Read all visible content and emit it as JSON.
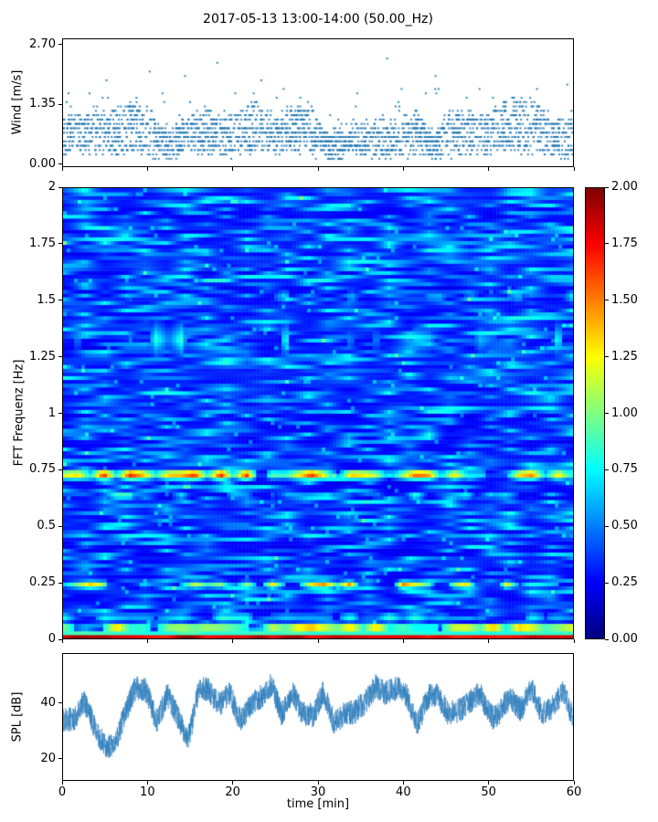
{
  "figure": {
    "title": "2017-05-13 13:00-14:00 (50.00_Hz)",
    "background": "#ffffff"
  },
  "chart_data": [
    {
      "id": "wind-speed-scatter",
      "type": "scatter",
      "ylabel": "Wind [m/s]",
      "xlim": [
        0,
        60
      ],
      "ylim": [
        -0.07,
        2.84
      ],
      "yticks": [
        {
          "v": 0.0,
          "label": "0.00"
        },
        {
          "v": 1.35,
          "label": "1.35"
        },
        {
          "v": 2.7,
          "label": "2.70"
        }
      ],
      "marker_color": "#1f77b4",
      "marker_size": 2,
      "n_points": 2600,
      "quantize_step": 0.1,
      "max_value": 2.7,
      "mean_base": 0.35,
      "mean_var": 0.7,
      "gust_prob": 0.06,
      "gust_amp": 1.7,
      "seed": 11,
      "description": "One hour of quantized anemometer samples; dense cloud between 0 and 1.35 m/s with intermittent gusts up to 2.70 m/s"
    },
    {
      "id": "fft-spectrogram",
      "type": "heatmap",
      "ylabel": "FFT Frequenz [Hz]",
      "xlim": [
        0,
        60
      ],
      "ylim": [
        0,
        2
      ],
      "clim": [
        0,
        2
      ],
      "colormap": "jet",
      "yticks": [
        {
          "v": 0,
          "label": "0"
        },
        {
          "v": 0.25,
          "label": "0.25"
        },
        {
          "v": 0.5,
          "label": "0.5"
        },
        {
          "v": 0.75,
          "label": "0.75"
        },
        {
          "v": 1,
          "label": "1"
        },
        {
          "v": 1.25,
          "label": "1.25"
        },
        {
          "v": 1.5,
          "label": "1.5"
        },
        {
          "v": 1.75,
          "label": "1.75"
        },
        {
          "v": 2,
          "label": "2"
        }
      ],
      "grid": {
        "nx": 140,
        "ny": 120
      },
      "base_min": 0.2,
      "base_jitter": 0.1,
      "speckle_prob": 0.012,
      "speckle_add": 0.25,
      "seed": 7,
      "bands": [
        {
          "f": 0.008,
          "width": 0.022,
          "min": 1.7,
          "max": 2.0,
          "coverage": 1.0
        },
        {
          "f": 0.05,
          "width": 0.022,
          "min": 1.0,
          "max": 2.0,
          "coverage": 0.85
        },
        {
          "f": 0.095,
          "width": 0.03,
          "min": 0.55,
          "max": 0.95,
          "coverage": 0.6
        },
        {
          "f": 0.24,
          "width": 0.022,
          "min": 0.6,
          "max": 1.7,
          "coverage": 0.5
        },
        {
          "f": 0.635,
          "width": 0.015,
          "min": 0.5,
          "max": 1.3,
          "coverage": 0.45
        },
        {
          "f": 0.73,
          "width": 0.028,
          "min": 0.7,
          "max": 2.0,
          "coverage": 0.8
        },
        {
          "f": 1.33,
          "width": 0.1,
          "min": 0.45,
          "max": 0.95,
          "coverage": 0.35
        },
        {
          "f": 1.52,
          "width": 0.04,
          "min": 0.4,
          "max": 0.8,
          "coverage": 0.3
        }
      ],
      "colorbar": {
        "ticks": [
          {
            "v": 0.0,
            "label": "0.00"
          },
          {
            "v": 0.25,
            "label": "0.25"
          },
          {
            "v": 0.5,
            "label": "0.50"
          },
          {
            "v": 0.75,
            "label": "0.75"
          },
          {
            "v": 1.0,
            "label": "1.00"
          },
          {
            "v": 1.25,
            "label": "1.25"
          },
          {
            "v": 1.5,
            "label": "1.50"
          },
          {
            "v": 1.75,
            "label": "1.75"
          },
          {
            "v": 2.0,
            "label": "2.00"
          }
        ]
      },
      "description": "Spectrogram 0-2 Hz over 60 min, jet colormap; strong persistent energy near 0 Hz (dark red), patchy lines near 0.05, 0.24, 0.63 and 0.73 Hz, diffuse cyan patches around 1.25-1.45 Hz over a blue background"
    },
    {
      "id": "spl-timeseries",
      "type": "line",
      "ylabel": "SPL [dB]",
      "xlabel": "time [min]",
      "xlim": [
        0,
        60
      ],
      "ylim": [
        12,
        58
      ],
      "xticks": [
        {
          "v": 0,
          "label": "0"
        },
        {
          "v": 10,
          "label": "10"
        },
        {
          "v": 20,
          "label": "20"
        },
        {
          "v": 30,
          "label": "30"
        },
        {
          "v": 40,
          "label": "40"
        },
        {
          "v": 50,
          "label": "50"
        },
        {
          "v": 60,
          "label": "60"
        }
      ],
      "yticks": [
        {
          "v": 20,
          "label": "20"
        },
        {
          "v": 40,
          "label": "40"
        }
      ],
      "line_color": "#2e7ebc",
      "n_points": 3000,
      "seed": 23,
      "mean": 40,
      "slow_amp": 7,
      "fast_amp": 4.5,
      "vmin": 17,
      "vmax": 53.5,
      "dips": [
        {
          "t": 5.3,
          "depth": 13,
          "width": 1.3
        },
        {
          "t": 14.8,
          "depth": 7,
          "width": 0.7
        },
        {
          "t": 33.0,
          "depth": 6,
          "width": 0.8
        },
        {
          "t": 41.6,
          "depth": 9,
          "width": 0.8
        },
        {
          "t": 50.6,
          "depth": 11,
          "width": 0.9
        }
      ],
      "description": "Noisy sound pressure level fluctuating mostly between 28 and 52 dB with pronounced dips near minutes 5, 15, 42 and 51"
    }
  ]
}
